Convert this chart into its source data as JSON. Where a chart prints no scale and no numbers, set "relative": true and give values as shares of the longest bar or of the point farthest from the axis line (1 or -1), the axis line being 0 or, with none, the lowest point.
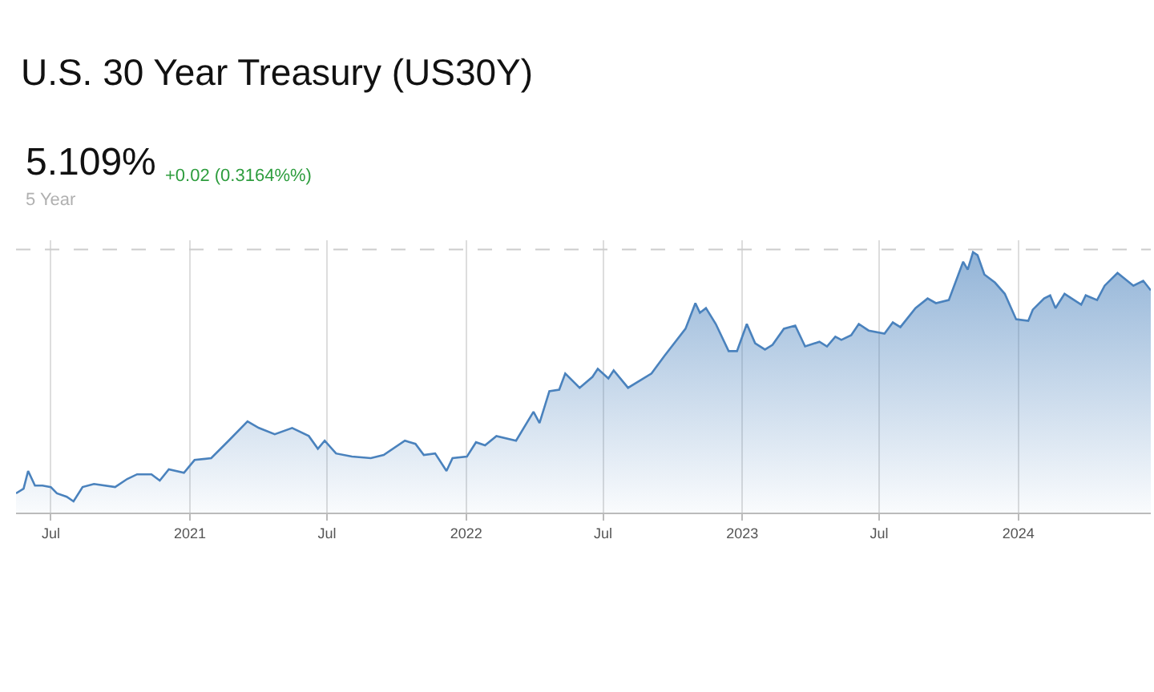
{
  "chart_data": {
    "type": "area",
    "title": "U.S. 30 Year Treasury (US30Y)",
    "annotations": [
      "5.109%",
      "+0.02 (0.3164%%)",
      "5 Year"
    ],
    "relative": true,
    "x": [
      "2020-05-16",
      "2020-05-26",
      "2020-06-01",
      "2020-06-10",
      "2020-06-20",
      "2020-07-01",
      "2020-07-09",
      "2020-07-22",
      "2020-07-31",
      "2020-08-12",
      "2020-08-27",
      "2020-09-24",
      "2020-10-10",
      "2020-10-23",
      "2020-11-11",
      "2020-11-22",
      "2020-12-04",
      "2020-12-24",
      "2021-01-07",
      "2021-01-29",
      "2021-02-21",
      "2021-03-18",
      "2021-04-02",
      "2021-04-23",
      "2021-05-16",
      "2021-06-07",
      "2021-06-19",
      "2021-06-28",
      "2021-07-13",
      "2021-08-03",
      "2021-08-28",
      "2021-09-14",
      "2021-10-12",
      "2021-10-26",
      "2021-11-06",
      "2021-11-21",
      "2021-12-06",
      "2021-12-14",
      "2022-01-02",
      "2022-01-14",
      "2022-01-26",
      "2022-02-10",
      "2022-03-08",
      "2022-03-31",
      "2022-04-08",
      "2022-04-21",
      "2022-05-04",
      "2022-05-12",
      "2022-05-31",
      "2022-06-17",
      "2022-06-24",
      "2022-07-08",
      "2022-07-15",
      "2022-08-03",
      "2022-09-03",
      "2022-09-20",
      "2022-10-18",
      "2022-10-31",
      "2022-11-06",
      "2022-11-14",
      "2022-11-27",
      "2022-12-14",
      "2022-12-25",
      "2023-01-07",
      "2023-01-18",
      "2023-01-31",
      "2023-02-10",
      "2023-02-25",
      "2023-03-12",
      "2023-03-25",
      "2023-04-13",
      "2023-04-23",
      "2023-05-04",
      "2023-05-12",
      "2023-05-25",
      "2023-06-04",
      "2023-06-17",
      "2023-07-08",
      "2023-07-19",
      "2023-07-29",
      "2023-08-18",
      "2023-09-03",
      "2023-09-14",
      "2023-10-01",
      "2023-10-20",
      "2023-10-26",
      "2023-11-02",
      "2023-11-08",
      "2023-11-17",
      "2023-12-01",
      "2023-12-14",
      "2023-12-29",
      "2024-01-14",
      "2024-01-20",
      "2024-02-04",
      "2024-02-12",
      "2024-02-19",
      "2024-03-02",
      "2024-03-24",
      "2024-03-30",
      "2024-04-14",
      "2024-04-24",
      "2024-05-11",
      "2024-06-01",
      "2024-06-14",
      "2024-06-24"
    ],
    "series": [
      {
        "color": "#4a82bd",
        "values": [
          0.074,
          0.092,
          0.16,
          0.104,
          0.104,
          0.098,
          0.074,
          0.061,
          0.043,
          0.098,
          0.11,
          0.098,
          0.129,
          0.147,
          0.147,
          0.123,
          0.166,
          0.153,
          0.202,
          0.209,
          0.276,
          0.35,
          0.325,
          0.301,
          0.325,
          0.294,
          0.245,
          0.276,
          0.227,
          0.215,
          0.209,
          0.221,
          0.276,
          0.264,
          0.221,
          0.227,
          0.16,
          0.209,
          0.215,
          0.27,
          0.258,
          0.294,
          0.276,
          0.387,
          0.344,
          0.466,
          0.472,
          0.534,
          0.479,
          0.521,
          0.552,
          0.515,
          0.546,
          0.479,
          0.534,
          0.601,
          0.706,
          0.804,
          0.767,
          0.785,
          0.724,
          0.62,
          0.62,
          0.724,
          0.65,
          0.626,
          0.644,
          0.706,
          0.718,
          0.638,
          0.656,
          0.638,
          0.675,
          0.663,
          0.681,
          0.724,
          0.699,
          0.687,
          0.73,
          0.712,
          0.785,
          0.822,
          0.804,
          0.816,
          0.963,
          0.933,
          1,
          0.988,
          0.914,
          0.883,
          0.84,
          0.742,
          0.736,
          0.779,
          0.822,
          0.834,
          0.785,
          0.84,
          0.798,
          0.834,
          0.816,
          0.871,
          0.92,
          0.871,
          0.89,
          0.853
        ]
      }
    ],
    "xlim": [
      "2020-05-16",
      "2024-06-24"
    ],
    "xticks": [
      {
        "value": "2020-07-01",
        "label": "Jul"
      },
      {
        "value": "2021-01-01",
        "label": "2021"
      },
      {
        "value": "2021-07-01",
        "label": "Jul"
      },
      {
        "value": "2022-01-01",
        "label": "2022"
      },
      {
        "value": "2022-07-01",
        "label": "Jul"
      },
      {
        "value": "2023-01-01",
        "label": "2023"
      },
      {
        "value": "2023-07-01",
        "label": "Jul"
      },
      {
        "value": "2024-01-01",
        "label": "2024"
      }
    ],
    "ref_lines": [
      {
        "axis": "y",
        "value": 1.01,
        "color": "#cccccc",
        "line_style": "dashed"
      }
    ],
    "grid": "x",
    "marker": "none",
    "line_style": "solid"
  }
}
